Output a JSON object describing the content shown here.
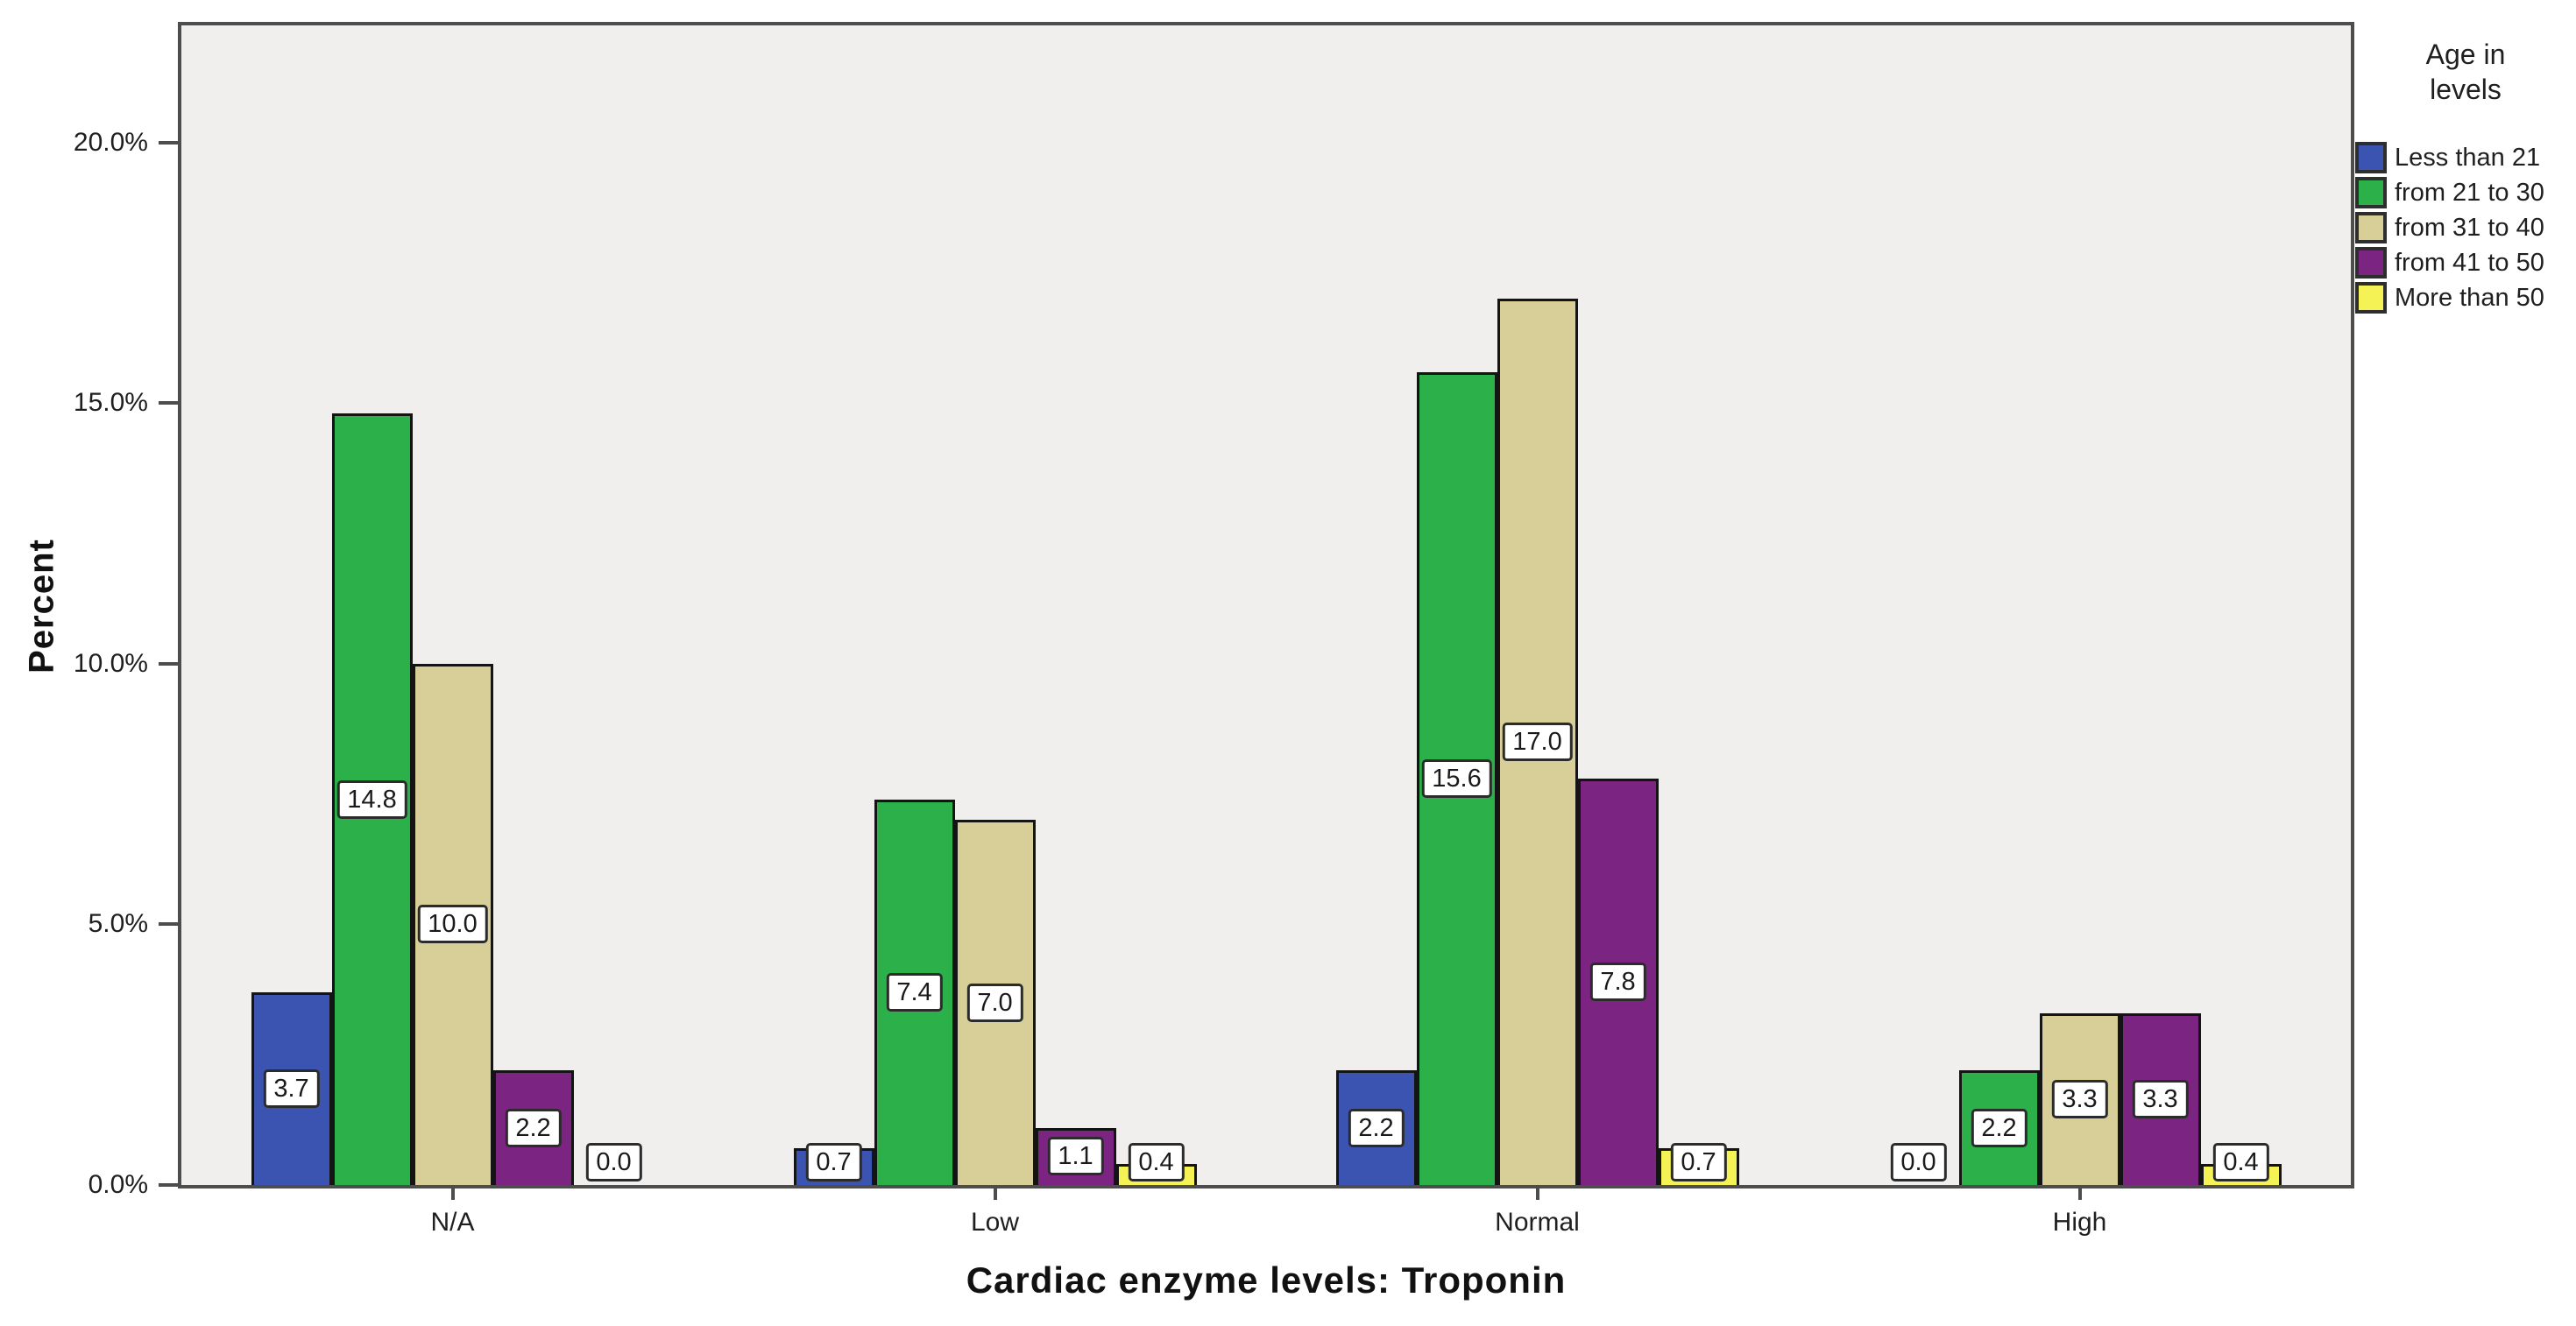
{
  "chart": {
    "y_axis": {
      "title": "Percent",
      "tick_labels": [
        "0.0%",
        "5.0%",
        "10.0%",
        "15.0%",
        "20.0%"
      ],
      "tick_values": [
        0,
        5,
        10,
        15,
        20
      ]
    },
    "x_axis": {
      "title": "Cardiac enzyme levels: Troponin"
    },
    "legend": {
      "title_line1": "Age in",
      "title_line2": "levels"
    }
  },
  "chart_data": {
    "type": "bar",
    "title": "",
    "xlabel": "Cardiac enzyme levels: Troponin",
    "ylabel": "Percent",
    "categories": [
      "N/A",
      "Low",
      "Normal",
      "High"
    ],
    "series": [
      {
        "name": "Less than 21",
        "color": "#3B53B1",
        "values": [
          3.7,
          0.7,
          2.2,
          0.0
        ]
      },
      {
        "name": "from 21 to 30",
        "color": "#2CB14A",
        "values": [
          14.8,
          7.4,
          15.6,
          2.2
        ]
      },
      {
        "name": "from 31 to 40",
        "color": "#D7CE98",
        "values": [
          10.0,
          7.0,
          17.0,
          3.3
        ]
      },
      {
        "name": "from 41 to 50",
        "color": "#7C2482",
        "values": [
          2.2,
          1.1,
          7.8,
          3.3
        ]
      },
      {
        "name": "More than 50",
        "color": "#F5F255",
        "values": [
          0.0,
          0.4,
          0.7,
          0.4
        ]
      }
    ],
    "ylim": [
      0,
      22.25
    ],
    "value_labels_shown": true,
    "legend_position": "right",
    "grid": false,
    "plot_background": "#F0EFED"
  }
}
